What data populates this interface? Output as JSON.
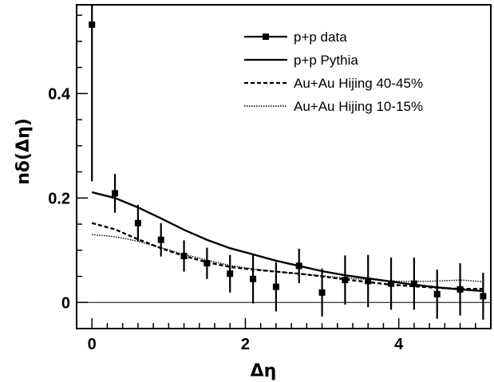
{
  "chart_data": {
    "type": "line",
    "xlabel": "Δη",
    "ylabel": "nδ(Δη)",
    "xlim": [
      -0.2,
      5.2
    ],
    "ylim": [
      -0.05,
      0.57
    ],
    "x_ticks": [
      0,
      2,
      4
    ],
    "x_tick_labels": [
      "0",
      "2",
      "4"
    ],
    "y_ticks": [
      0,
      0.2,
      0.4
    ],
    "y_tick_labels": [
      "0",
      "0.2",
      "0.4"
    ],
    "zero_line": true,
    "grid": false,
    "legend_position": "top-right",
    "series": [
      {
        "name": "p+p data",
        "style": "markers-errorbars",
        "color": "#000000",
        "x": [
          0.0,
          0.3,
          0.6,
          0.9,
          1.2,
          1.5,
          1.8,
          2.1,
          2.4,
          2.7,
          3.0,
          3.3,
          3.6,
          3.9,
          4.2,
          4.5,
          4.8,
          5.1
        ],
        "y": [
          0.532,
          0.209,
          0.152,
          0.12,
          0.089,
          0.075,
          0.055,
          0.045,
          0.03,
          0.07,
          0.019,
          0.043,
          0.041,
          0.036,
          0.036,
          0.016,
          0.025,
          0.012
        ],
        "yerr": [
          0.3,
          0.037,
          0.035,
          0.032,
          0.03,
          0.03,
          0.036,
          0.047,
          0.047,
          0.033,
          0.046,
          0.047,
          0.05,
          0.05,
          0.05,
          0.047,
          0.05,
          0.045
        ]
      },
      {
        "name": "p+p Pythia",
        "style": "solid",
        "color": "#000000",
        "x": [
          0.0,
          0.3,
          0.6,
          0.9,
          1.2,
          1.5,
          1.8,
          2.1,
          2.4,
          2.7,
          3.0,
          3.3,
          3.6,
          3.9,
          4.2,
          4.5,
          4.8,
          5.1
        ],
        "y": [
          0.211,
          0.2,
          0.182,
          0.161,
          0.139,
          0.12,
          0.104,
          0.092,
          0.08,
          0.07,
          0.06,
          0.052,
          0.046,
          0.04,
          0.034,
          0.029,
          0.025,
          0.022
        ]
      },
      {
        "name": "Au+Au Hijing 40-45%",
        "style": "dashed",
        "color": "#000000",
        "x": [
          0.0,
          0.3,
          0.6,
          0.9,
          1.2,
          1.5,
          1.8,
          2.1,
          2.4,
          2.7,
          3.0,
          3.3,
          3.6,
          3.9,
          4.2,
          4.5,
          4.8,
          5.1
        ],
        "y": [
          0.152,
          0.14,
          0.121,
          0.104,
          0.089,
          0.077,
          0.068,
          0.063,
          0.059,
          0.055,
          0.05,
          0.044,
          0.039,
          0.034,
          0.031,
          0.028,
          0.026,
          0.026
        ]
      },
      {
        "name": "Au+Au Hijing 10-15%",
        "style": "dotted",
        "color": "#000000",
        "x": [
          0.0,
          0.3,
          0.6,
          0.9,
          1.2,
          1.5,
          1.8,
          2.1,
          2.4,
          2.7,
          3.0,
          3.3,
          3.6,
          3.9,
          4.2,
          4.5,
          4.8,
          5.1
        ],
        "y": [
          0.13,
          0.126,
          0.117,
          0.105,
          0.092,
          0.081,
          0.071,
          0.064,
          0.059,
          0.055,
          0.051,
          0.047,
          0.044,
          0.041,
          0.04,
          0.041,
          0.043,
          0.04
        ]
      }
    ]
  }
}
